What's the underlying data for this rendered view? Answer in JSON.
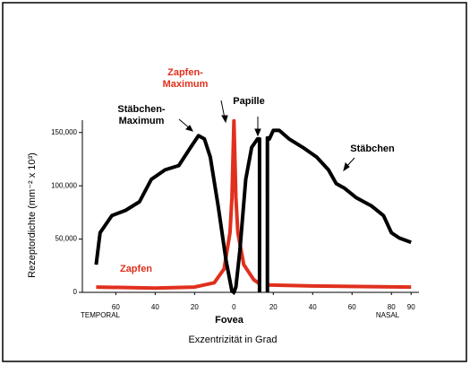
{
  "chart_data": {
    "type": "line",
    "xlabel": "Exzentrizität in Grad",
    "ylabel": "Rezeptordichte (mm⁻² x 10³)",
    "xlim": [
      -77,
      94
    ],
    "ylim": [
      0,
      170000
    ],
    "xticks": [
      {
        "value": -60,
        "label": "60"
      },
      {
        "value": -40,
        "label": "40"
      },
      {
        "value": -20,
        "label": "20"
      },
      0,
      20,
      40,
      60,
      80,
      90
    ],
    "yticks": [
      0,
      {
        "value": 50000,
        "label": "50,000"
      },
      {
        "value": 100000,
        "label": "100,000"
      },
      {
        "value": 150000,
        "label": "150,000"
      }
    ],
    "series": [
      {
        "name": "Stäbchen",
        "color": "#000000",
        "x": [
          -70,
          -68,
          -62,
          -55,
          -48,
          -42,
          -35,
          -28,
          -22,
          -18,
          -15,
          -12,
          -8,
          -4,
          -1,
          0,
          1,
          3,
          6,
          9,
          12,
          13,
          13,
          null,
          17,
          17,
          18,
          20,
          23,
          28,
          35,
          42,
          48,
          52,
          56,
          62,
          70,
          76,
          80,
          84,
          90
        ],
        "values": [
          26000,
          56000,
          72000,
          77000,
          85000,
          106000,
          115000,
          119000,
          136000,
          147000,
          144000,
          127000,
          81000,
          30000,
          1000,
          0,
          5000,
          39000,
          106000,
          136000,
          144000,
          144000,
          0,
          null,
          0,
          145000,
          144000,
          152000,
          152000,
          144000,
          136000,
          127000,
          115000,
          102000,
          98000,
          89000,
          81000,
          72000,
          56000,
          51000,
          47000
        ]
      },
      {
        "name": "Zapfen",
        "color": "#e0301e",
        "x": [
          -70,
          -40,
          -20,
          -10,
          -5,
          -2,
          -1,
          0,
          1,
          2,
          5,
          10,
          13,
          null,
          17,
          40,
          90
        ],
        "values": [
          5000,
          4000,
          5000,
          9000,
          22000,
          56000,
          89000,
          161000,
          89000,
          56000,
          26000,
          12000,
          8000,
          null,
          7000,
          6000,
          5000
        ]
      }
    ],
    "annotations": {
      "cone_max": [
        "Zapfen-",
        "Maximum"
      ],
      "rod_max": [
        "Stäbchen-",
        "Maximum"
      ],
      "papilla": "Papille",
      "rods": "Stäbchen",
      "cones": "Zapfen",
      "fovea": "Fovea",
      "temporal": "TEMPORAL",
      "nasal": "NASAL"
    }
  }
}
